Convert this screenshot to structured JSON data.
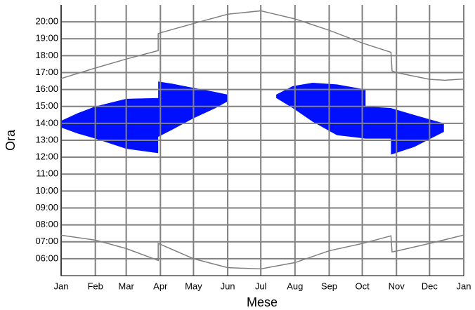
{
  "chart_data": {
    "type": "line",
    "x_label": "Mese",
    "y_label": "Ora",
    "xlim": [
      0,
      365
    ],
    "ylim": [
      5,
      21
    ],
    "xticks": [
      {
        "value": 0,
        "label": "Jan"
      },
      {
        "value": 31,
        "label": "Feb"
      },
      {
        "value": 59,
        "label": "Mar"
      },
      {
        "value": 90,
        "label": "Apr"
      },
      {
        "value": 120,
        "label": "May"
      },
      {
        "value": 151,
        "label": "Jun"
      },
      {
        "value": 181,
        "label": "Jul"
      },
      {
        "value": 212,
        "label": "Aug"
      },
      {
        "value": 243,
        "label": "Sep"
      },
      {
        "value": 273,
        "label": "Oct"
      },
      {
        "value": 304,
        "label": "Nov"
      },
      {
        "value": 334,
        "label": "Dec"
      },
      {
        "value": 365,
        "label": "Jan"
      }
    ],
    "yticks": [
      {
        "value": 6,
        "label": "06:00"
      },
      {
        "value": 7,
        "label": "07:00"
      },
      {
        "value": 8,
        "label": "08:00"
      },
      {
        "value": 9,
        "label": "09:00"
      },
      {
        "value": 10,
        "label": "10:00"
      },
      {
        "value": 11,
        "label": "11:00"
      },
      {
        "value": 12,
        "label": "12:00"
      },
      {
        "value": 13,
        "label": "13:00"
      },
      {
        "value": 14,
        "label": "14:00"
      },
      {
        "value": 15,
        "label": "15:00"
      },
      {
        "value": 16,
        "label": "16:00"
      },
      {
        "value": 17,
        "label": "17:00"
      },
      {
        "value": 18,
        "label": "18:00"
      },
      {
        "value": 19,
        "label": "19:00"
      },
      {
        "value": 20,
        "label": "20:00"
      }
    ],
    "grid": true,
    "grid_color": "#808080",
    "series": [
      {
        "color": "#808080",
        "x": [
          0,
          31,
          59,
          88,
          88,
          90,
          120,
          151,
          181,
          212,
          243,
          273,
          299,
          300,
          304,
          334,
          348,
          365
        ],
        "values": [
          16.65,
          17.27,
          17.8,
          18.3,
          19.3,
          19.35,
          19.9,
          20.45,
          20.65,
          20.17,
          19.5,
          18.75,
          18.2,
          17.1,
          17.0,
          16.6,
          16.55,
          16.62
        ]
      },
      {
        "color": "#808080",
        "x": [
          0,
          31,
          59,
          88,
          88,
          90,
          120,
          151,
          181,
          212,
          243,
          273,
          299,
          300,
          304,
          334,
          365
        ],
        "values": [
          7.39,
          7.1,
          6.6,
          5.9,
          6.9,
          6.85,
          6.0,
          5.47,
          5.4,
          5.77,
          6.47,
          6.9,
          7.35,
          6.4,
          6.45,
          6.9,
          7.4
        ]
      }
    ],
    "areas": [
      {
        "color": "#0010ff",
        "x": [
          0,
          15,
          31,
          59,
          88,
          88,
          100,
          120,
          140,
          151
        ],
        "upper": [
          14.15,
          14.6,
          15.0,
          15.45,
          15.5,
          16.47,
          16.35,
          16.1,
          15.85,
          15.7
        ],
        "lower": [
          13.75,
          13.4,
          13.1,
          12.5,
          12.24,
          13.2,
          13.6,
          14.3,
          14.9,
          15.3
        ]
      },
      {
        "color": "#0010ff",
        "x": [
          195,
          210,
          228,
          250,
          276,
          276,
          299,
          299,
          320,
          347
        ],
        "upper": [
          15.7,
          16.2,
          16.4,
          16.3,
          16.0,
          15.0,
          14.9,
          14.9,
          14.5,
          14.0
        ],
        "lower": [
          15.5,
          14.9,
          14.1,
          13.3,
          13.1,
          13.1,
          13.1,
          12.15,
          12.6,
          13.5
        ]
      }
    ]
  }
}
